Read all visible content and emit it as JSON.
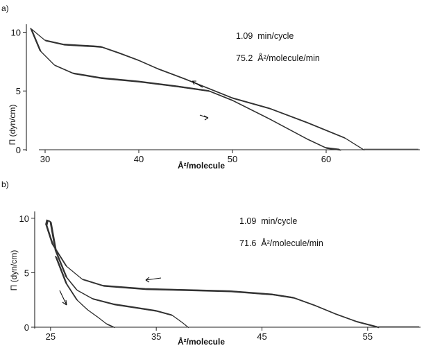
{
  "chart_data": [
    {
      "panel": "a)",
      "type": "line",
      "xlabel": "Å²/molecule",
      "ylabel": "Π (dyn/cm)",
      "xlim": [
        28,
        70
      ],
      "ylim": [
        0,
        10.5
      ],
      "xticks": [
        30,
        40,
        50,
        60
      ],
      "yticks": [
        0,
        5,
        10
      ],
      "annotations": [
        "1.09  min/cycle",
        "75.2  Å²/molecule/min"
      ],
      "series": [
        {
          "x": [
            64,
            62,
            58,
            54,
            50,
            47.5,
            45,
            42,
            40,
            38,
            36,
            35.2,
            34,
            32,
            30,
            28.5
          ],
          "y": [
            0,
            1.0,
            2.3,
            3.5,
            4.4,
            5.2,
            6.0,
            6.9,
            7.6,
            8.2,
            8.75,
            8.8,
            8.85,
            8.95,
            9.3,
            10.3
          ]
        },
        {
          "x": [
            28.5,
            29.5,
            31,
            33,
            36,
            40,
            44,
            47.5,
            50,
            54,
            58,
            60,
            61.5
          ],
          "y": [
            10.3,
            8.4,
            7.2,
            6.5,
            6.1,
            5.8,
            5.4,
            5.0,
            4.2,
            2.6,
            0.9,
            0.15,
            0
          ]
        }
      ]
    },
    {
      "panel": "b)",
      "type": "line",
      "xlabel": "Å²/molecule",
      "ylabel": "Π (dyn/cm)",
      "xlim": [
        23.5,
        60
      ],
      "ylim": [
        0,
        10.5
      ],
      "xticks": [
        25,
        35,
        45,
        55
      ],
      "yticks": [
        0,
        5,
        10
      ],
      "annotations": [
        "1.09  min/cycle",
        "71.6  Å²/molecule/min"
      ],
      "series": [
        {
          "x": [
            56,
            54,
            52,
            50,
            48,
            46,
            42,
            38,
            34,
            30,
            28,
            26.5,
            25.2,
            24.6,
            24.7,
            25
          ],
          "y": [
            0,
            0.5,
            1.2,
            2.0,
            2.7,
            3.0,
            3.3,
            3.4,
            3.5,
            3.8,
            4.4,
            5.6,
            7.6,
            9.4,
            9.8,
            9.7
          ]
        },
        {
          "x": [
            25,
            25.5,
            26.5,
            27.5,
            29,
            31,
            33,
            35,
            36.5,
            37.5,
            38
          ],
          "y": [
            9.7,
            7.0,
            4.6,
            3.4,
            2.6,
            2.1,
            1.8,
            1.5,
            1.1,
            0.4,
            0
          ]
        },
        {
          "x": [
            25.5,
            26.5,
            27.5,
            28.5,
            29.5,
            30.3,
            31
          ],
          "y": [
            6.5,
            4.0,
            2.5,
            1.6,
            0.9,
            0.3,
            0
          ]
        }
      ]
    }
  ]
}
